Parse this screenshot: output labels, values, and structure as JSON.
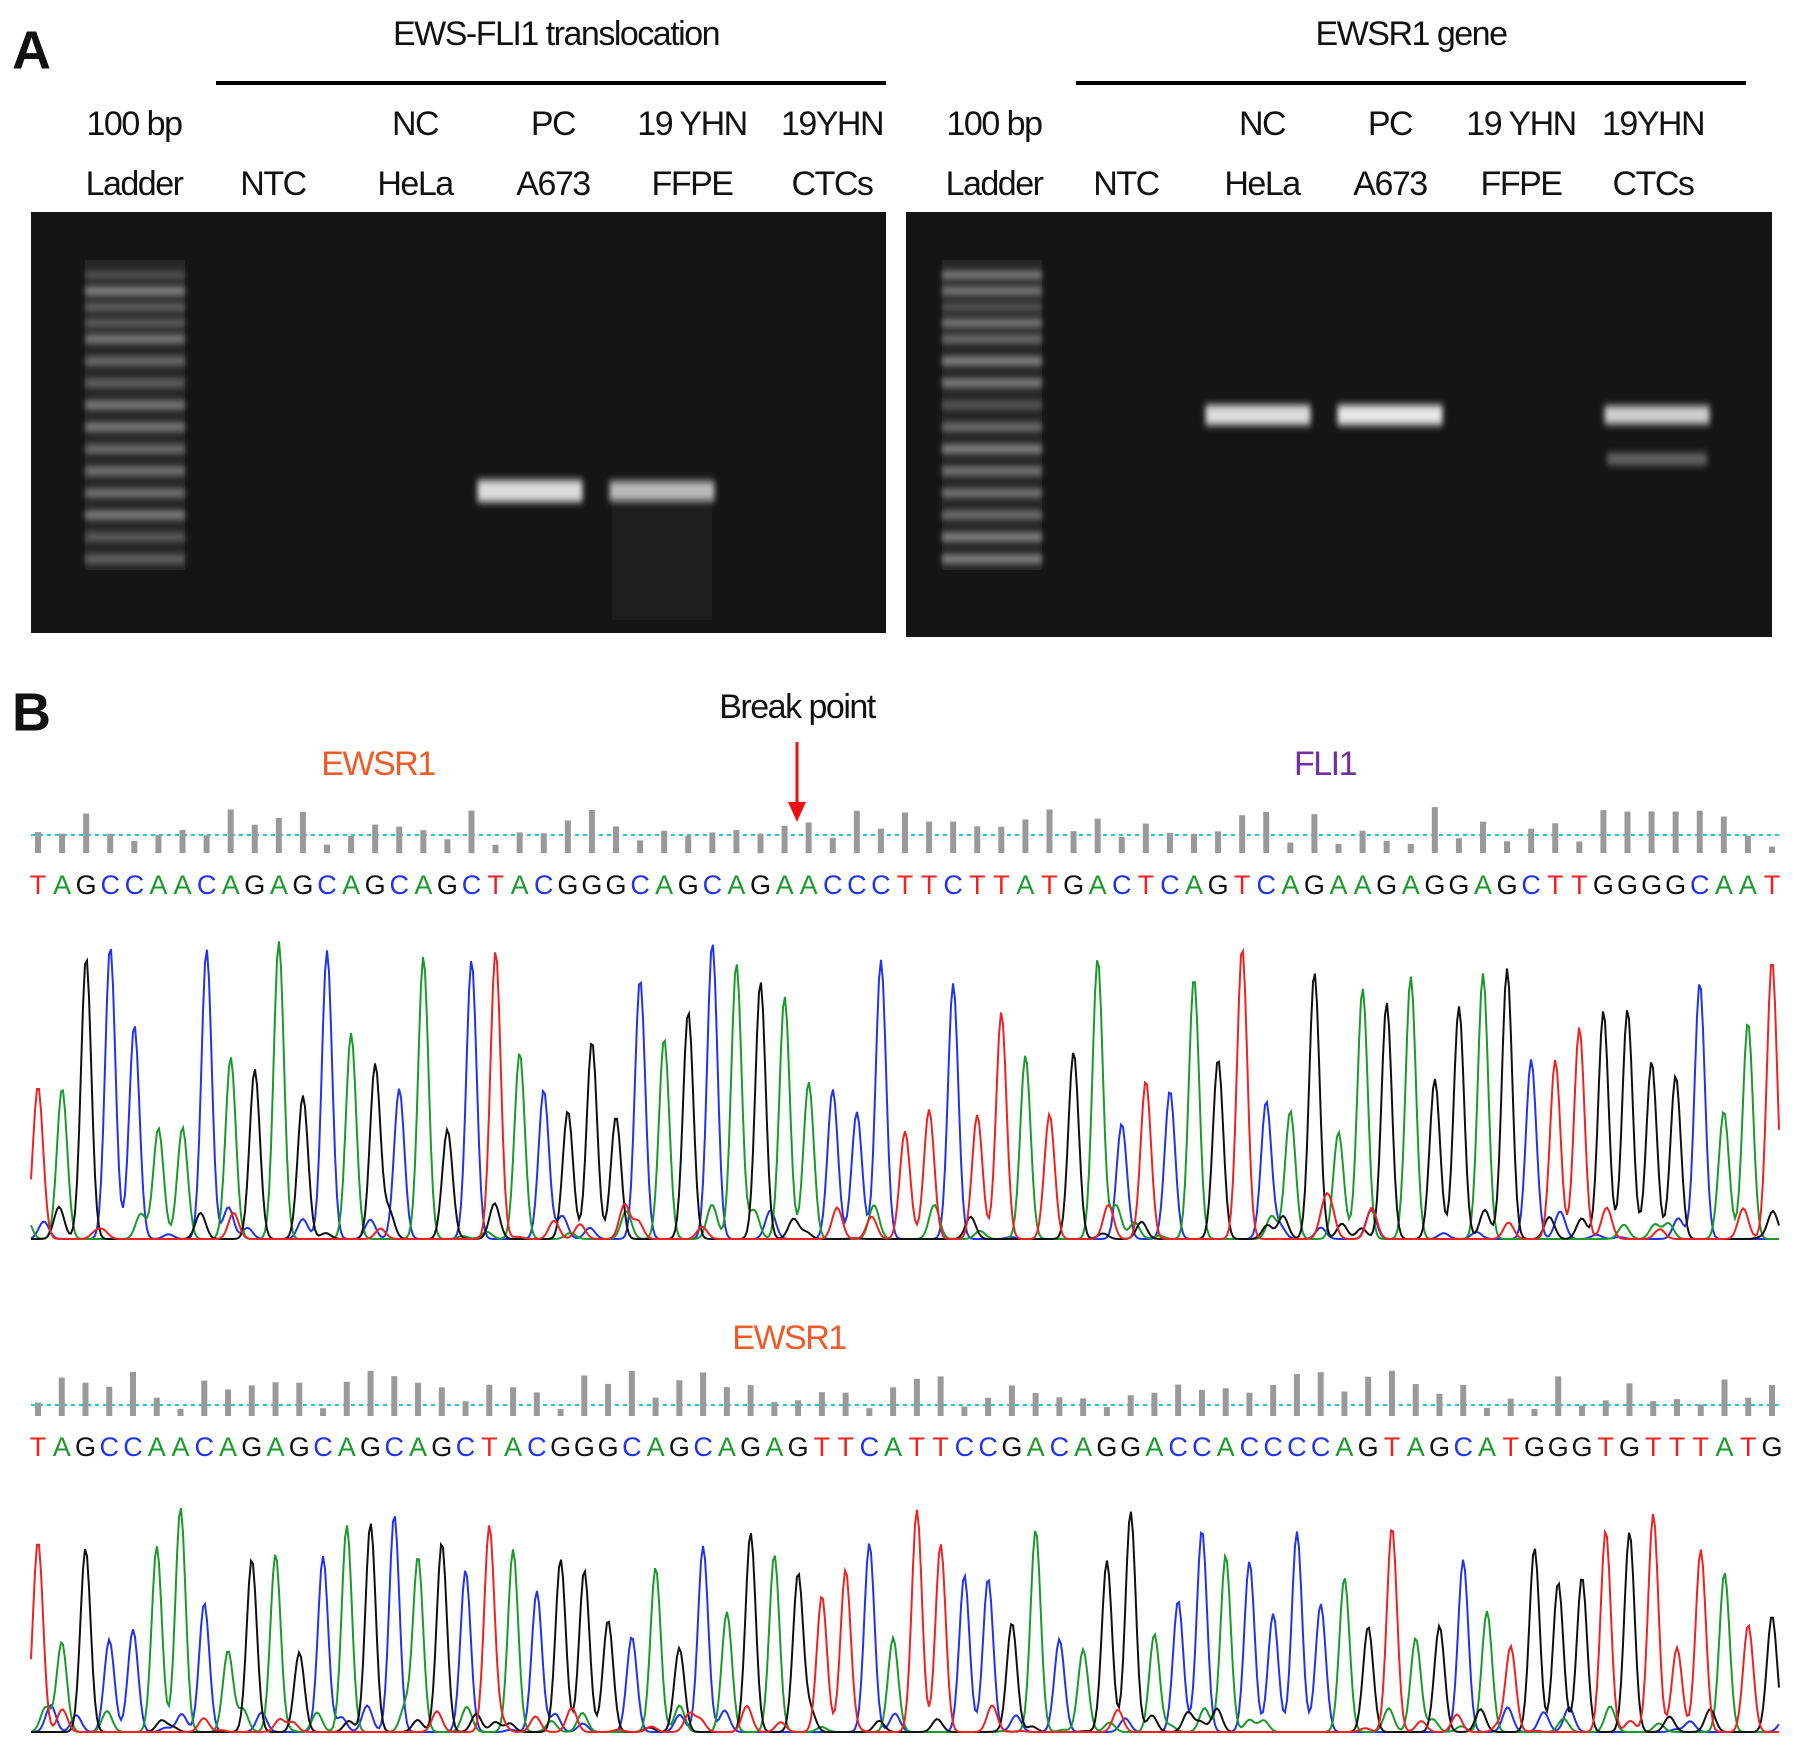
{
  "panel_a": {
    "label": "A",
    "gels": [
      {
        "title": "EWS-FLI1 translocation",
        "lanes": [
          [
            "100 bp",
            "Ladder"
          ],
          [
            "NTC"
          ],
          [
            "NC",
            "HeLa"
          ],
          [
            "PC",
            "A673"
          ],
          [
            "19 YHN",
            "FFPE"
          ],
          [
            "19YHN",
            "CTCs"
          ]
        ]
      },
      {
        "title": "EWSR1 gene",
        "lanes": [
          [
            "100 bp",
            "Ladder"
          ],
          [
            "NTC"
          ],
          [
            "NC",
            "HeLa"
          ],
          [
            "PC",
            "A673"
          ],
          [
            "19 YHN",
            "FFPE"
          ],
          [
            "19YHN",
            "CTCs"
          ]
        ]
      }
    ]
  },
  "panel_b": {
    "label": "B",
    "break_point": "Break point",
    "trace1": {
      "left_gene": "EWSR1",
      "right_gene": "FLI1",
      "sequence": "TAGCCAACAGAGCAGCAGCTACGGGCAGCAGAACCCTTCTTATGACTCAGTCAGAAGAGGAGCTTGGGGCAAT"
    },
    "trace2": {
      "gene": "EWSR1",
      "sequence": "TAGCCAACAGAGCAGCAGCTACGGGCAGCAGAGTTCATTCCGACAGGACCACCCCAGTAGCATGGGTGTTTATG"
    }
  }
}
